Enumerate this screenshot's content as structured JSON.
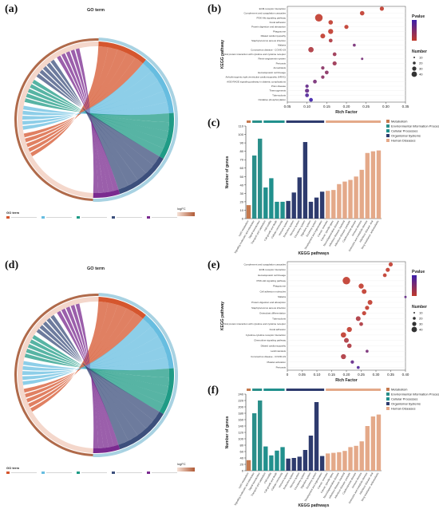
{
  "panels": {
    "a": "(a)",
    "b": "(b)",
    "c": "(c)",
    "d": "(d)",
    "e": "(e)",
    "f": "(f)"
  },
  "colors": {
    "metabolism": "#c5794e",
    "environmental": "#2a8f8a",
    "cellular": "#21908d",
    "organismal": "#2e3b6e",
    "human": "#e4a989",
    "chord_orange": "#d5562e",
    "chord_blue": "#67bde0",
    "chord_teal": "#1f9b86",
    "chord_navy": "#3c4f7c",
    "chord_purple": "#7a2a8f",
    "chord_ring": "#b06a4a"
  },
  "chord_a": {
    "title": "GO term",
    "legend_title": "GO term",
    "logfc_label": "logFC"
  },
  "chord_d": {
    "title": "GO term",
    "legend_title": "GO term",
    "logfc_label": "logFC"
  },
  "chart_data": [
    {
      "id": "b",
      "type": "scatter",
      "ylabel": "KEGG pathway",
      "xlabel": "Rich Factor",
      "xlim": [
        0.05,
        0.35
      ],
      "xticks": [
        "0.05",
        "0.10",
        "0.15",
        "0.20",
        "0.25",
        "0.30",
        "0.35"
      ],
      "legend": {
        "color_title": "Pvalue",
        "size_title": "Number",
        "sizes": [
          "10",
          "20",
          "30",
          "40"
        ]
      },
      "categories": [
        "ECM-receptor interaction",
        "Complement and coagulation cascades",
        "PI3K-Akt signaling pathway",
        "Focal adhesion",
        "Protein digestion and absorption",
        "Phagosome",
        "Dilated cardiomyopathy",
        "Staphylococcus aureus infection",
        "Malaria",
        "Coronavirus disease - COVID-19",
        "Viral protein interaction with cytokine and cytokine receptor",
        "Renin-angiotensin system",
        "Pertussis",
        "Amoebiasis",
        "Hematopoietic cell lineage",
        "Arrhythmogenic right ventricular cardiomyopathy (ARVC)",
        "AGE-RAGE signaling pathway in diabetic complications",
        "Prion disease",
        "Thermogenesis",
        "Tuberculosis",
        "Oxidative phosphorylation"
      ],
      "x": [
        0.29,
        0.24,
        0.13,
        0.16,
        0.2,
        0.16,
        0.14,
        0.16,
        0.22,
        0.11,
        0.17,
        0.24,
        0.17,
        0.14,
        0.15,
        0.14,
        0.12,
        0.1,
        0.1,
        0.1,
        0.11
      ],
      "size": [
        12,
        14,
        40,
        14,
        12,
        18,
        16,
        10,
        6,
        20,
        10,
        4,
        12,
        8,
        10,
        8,
        10,
        8,
        12,
        10,
        10
      ],
      "pval": [
        0.0,
        0.0,
        0.0,
        0.0,
        0.0,
        0.0,
        0.0,
        0.01,
        0.04,
        0.01,
        0.02,
        0.04,
        0.02,
        0.03,
        0.03,
        0.03,
        0.04,
        0.05,
        0.05,
        0.06,
        0.07
      ]
    },
    {
      "id": "c",
      "type": "bar",
      "ylabel": "Number of genes",
      "xlabel": "KEGG pathways",
      "ylim": [
        0,
        110
      ],
      "yticks": [
        "0",
        "10",
        "20",
        "30",
        "40",
        "50",
        "60",
        "70",
        "80",
        "90",
        "100",
        "110"
      ],
      "legend": [
        "Metabolism",
        "Environmental Information Processing",
        "Cellular Processes",
        "Organismal Systems",
        "Human Diseases"
      ],
      "categories": [
        "Lipid metabolism",
        "Signaling molecules and interaction",
        "Signal transduction",
        "Transport and catabolism",
        "Cell motility",
        "Cell growth and death",
        "Cellular community",
        "Immune system",
        "Endocrine system",
        "Nervous system",
        "Circulatory system",
        "Digestive system",
        "Excretory system",
        "Development and regeneration",
        "Cancer: overview",
        "Cancer: specific types",
        "Neurodegenerative disease",
        "Infectious disease: bacterial",
        "Infectious disease: parasitic",
        "Cardiovascular disease",
        "Immune disease",
        "Endocrine and metabolic disease",
        "Infectious disease: viral",
        "Drug resistance: antineoplastic"
      ],
      "values": [
        16,
        75,
        95,
        37,
        48,
        20,
        20,
        21,
        31,
        49,
        91,
        20,
        25,
        32,
        33,
        34,
        41,
        44,
        46,
        50,
        58,
        78,
        80,
        81
      ],
      "groups": [
        0,
        1,
        1,
        2,
        2,
        2,
        2,
        3,
        3,
        3,
        3,
        3,
        3,
        3,
        4,
        4,
        4,
        4,
        4,
        4,
        4,
        4,
        4,
        4
      ]
    },
    {
      "id": "e",
      "type": "scatter",
      "ylabel": "KEGG pathway",
      "xlabel": "Rich Factor",
      "xlim": [
        0.0,
        0.4
      ],
      "xticks": [
        "0",
        "0.05",
        "0.10",
        "0.15",
        "0.20",
        "0.25",
        "0.30",
        "0.35",
        "0.40"
      ],
      "legend": {
        "color_title": "Pvalue",
        "size_title": "Number",
        "sizes": [
          "10",
          "20",
          "30",
          "40"
        ]
      },
      "categories": [
        "Complement and coagulation cascades",
        "ECM-receptor interaction",
        "Hematopoietic cell lineage",
        "PI3K-Akt signaling pathway",
        "Phagosome",
        "Cell adhesion molecules",
        "Malaria",
        "Protein digestion and absorption",
        "Staphylococcus aureus infection",
        "Osteoclast differentiation",
        "Tuberculosis",
        "Viral protein interaction with cytokine and cytokine receptor",
        "Focal adhesion",
        "Cytokine-cytokine receptor interaction",
        "Chemokine signaling pathway",
        "Dilated cardiomyopathy",
        "Leishmaniasis",
        "Coronavirus disease - COVID-19",
        "Platelet activation",
        "Pertussis"
      ],
      "x": [
        0.35,
        0.34,
        0.33,
        0.2,
        0.25,
        0.26,
        0.4,
        0.28,
        0.27,
        0.26,
        0.24,
        0.25,
        0.21,
        0.19,
        0.2,
        0.21,
        0.27,
        0.19,
        0.22,
        0.24
      ],
      "size": [
        12,
        12,
        10,
        40,
        18,
        16,
        4,
        16,
        12,
        12,
        16,
        10,
        18,
        20,
        16,
        14,
        6,
        18,
        8,
        6
      ],
      "pval": [
        0.0,
        0.0,
        0.0,
        0.0,
        0.0,
        0.0,
        0.05,
        0.0,
        0.0,
        0.0,
        0.01,
        0.01,
        0.0,
        0.0,
        0.01,
        0.01,
        0.04,
        0.01,
        0.05,
        0.06
      ]
    },
    {
      "id": "f",
      "type": "bar",
      "ylabel": "Number of genes",
      "xlabel": "KEGG pathways",
      "ylim": [
        0,
        240
      ],
      "yticks": [
        "0",
        "20",
        "40",
        "60",
        "80",
        "100",
        "120",
        "140",
        "160",
        "180",
        "200",
        "220",
        "240"
      ],
      "legend": [
        "Metabolism",
        "Environmental Information Processing",
        "Cellular Processes",
        "Organismal Systems",
        "Human Diseases"
      ],
      "categories": [
        "Lipid metabolism",
        "Signaling molecules and interaction",
        "Signal transduction",
        "Transport and catabolism",
        "Cell motility",
        "Cell growth and death",
        "Cellular community",
        "Immune system",
        "Endocrine system",
        "Nervous system",
        "Circulatory system",
        "Digestive system",
        "Excretory system",
        "Development and regeneration",
        "Cancer: overview",
        "Cancer: specific types",
        "Neurodegenerative disease",
        "Infectious disease: bacterial",
        "Infectious disease: parasitic",
        "Cardiovascular disease",
        "Immune disease",
        "Endocrine and metabolic disease",
        "Infectious disease: viral",
        "Drug resistance: antineoplastic"
      ],
      "values": [
        33,
        180,
        220,
        76,
        48,
        63,
        74,
        38,
        40,
        44,
        65,
        110,
        215,
        46,
        54,
        56,
        58,
        62,
        74,
        78,
        92,
        140,
        170,
        176
      ],
      "groups": [
        0,
        1,
        1,
        2,
        2,
        2,
        2,
        3,
        3,
        3,
        3,
        3,
        3,
        3,
        4,
        4,
        4,
        4,
        4,
        4,
        4,
        4,
        4,
        4
      ]
    }
  ]
}
